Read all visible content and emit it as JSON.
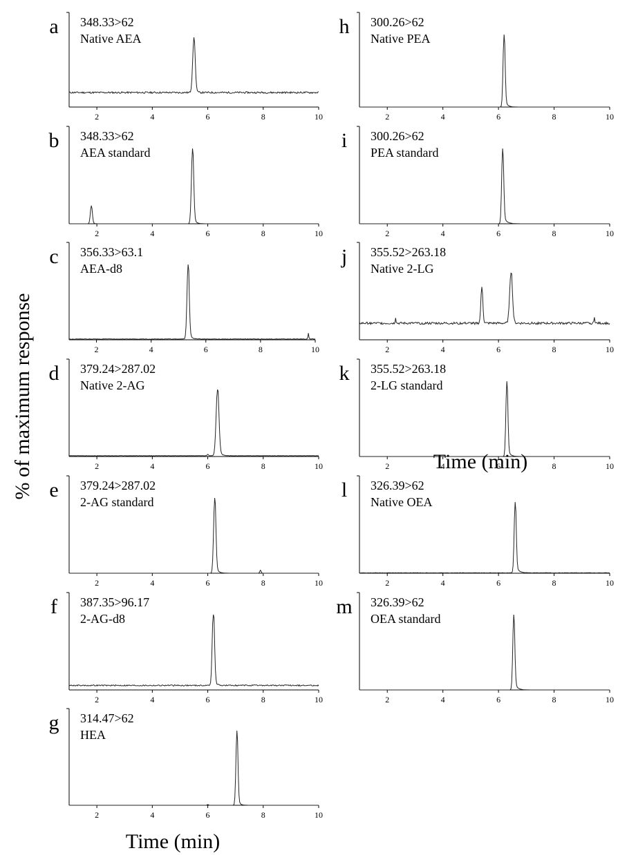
{
  "figure": {
    "ylabel": "% of maximum response",
    "xlabel_left": "Time (min)",
    "xlabel_right": "Time (min)"
  },
  "chart_data": [
    {
      "id": "a",
      "type": "line",
      "letter": "a",
      "transition": "348.33>62",
      "analyte": "Native AEA",
      "xlim": [
        1,
        10
      ],
      "ylim": [
        0,
        100
      ],
      "xticks": [
        2,
        4,
        6,
        8,
        10
      ],
      "baseline": 20,
      "noise": 1.2,
      "peaks": [
        {
          "x": 5.5,
          "height": 75,
          "width": 0.09,
          "tail": 0.05
        }
      ]
    },
    {
      "id": "b",
      "type": "line",
      "letter": "b",
      "transition": "348.33>62",
      "analyte": "AEA standard",
      "xlim": [
        1,
        10
      ],
      "ylim": [
        0,
        100
      ],
      "xticks": [
        2,
        4,
        6,
        8,
        10
      ],
      "baseline": 0,
      "noise": 0,
      "peaks": [
        {
          "x": 1.8,
          "height": 24,
          "width": 0.07,
          "tail": 0.05
        },
        {
          "x": 5.45,
          "height": 100,
          "width": 0.08,
          "tail": 0.08
        }
      ]
    },
    {
      "id": "c",
      "type": "line",
      "letter": "c",
      "transition": "356.33>63.1",
      "analyte": "AEA-d8",
      "xlim": [
        1,
        10
      ],
      "ylim": [
        0,
        100
      ],
      "xticks": [
        2,
        4,
        6,
        8,
        10
      ],
      "baseline": 1,
      "noise": 0.3,
      "peaks": [
        {
          "x": 5.35,
          "height": 100,
          "width": 0.08,
          "tail": 0.08
        },
        {
          "x": 9.75,
          "height": 8,
          "width": 0.03,
          "tail": 0.01
        }
      ]
    },
    {
      "id": "d",
      "type": "line",
      "letter": "d",
      "transition": "379.24>287.02",
      "analyte": "Native 2-AG",
      "xlim": [
        1,
        10
      ],
      "ylim": [
        0,
        100
      ],
      "xticks": [
        2,
        4,
        6,
        8,
        10
      ],
      "baseline": 1,
      "noise": 0.2,
      "peaks": [
        {
          "x": 6.35,
          "height": 88,
          "width": 0.1,
          "tail": 0.09
        },
        {
          "x": 6.0,
          "height": 2,
          "width": 0.05,
          "tail": 0.01
        }
      ]
    },
    {
      "id": "e",
      "type": "line",
      "letter": "e",
      "transition": "379.24>287.02",
      "analyte": "2-AG standard",
      "xlim": [
        1,
        10
      ],
      "ylim": [
        0,
        100
      ],
      "xticks": [
        2,
        4,
        6,
        8,
        10
      ],
      "baseline": 0,
      "noise": 0,
      "peaks": [
        {
          "x": 6.25,
          "height": 100,
          "width": 0.08,
          "tail": 0.09
        },
        {
          "x": 7.9,
          "height": 4,
          "width": 0.05,
          "tail": 0.01
        }
      ]
    },
    {
      "id": "f",
      "type": "line",
      "letter": "f",
      "transition": "387.35>96.17",
      "analyte": "2-AG-d8",
      "xlim": [
        1,
        10
      ],
      "ylim": [
        0,
        100
      ],
      "xticks": [
        2,
        4,
        6,
        8,
        10
      ],
      "baseline": 6,
      "noise": 0.8,
      "peaks": [
        {
          "x": 6.2,
          "height": 100,
          "width": 0.08,
          "tail": 0.07
        }
      ]
    },
    {
      "id": "g",
      "type": "line",
      "letter": "g",
      "transition": "314.47>62",
      "analyte": "HEA",
      "xlim": [
        1,
        10
      ],
      "ylim": [
        0,
        100
      ],
      "xticks": [
        2,
        4,
        6,
        8,
        10
      ],
      "baseline": 0,
      "noise": 0,
      "peaks": [
        {
          "x": 7.05,
          "height": 100,
          "width": 0.07,
          "tail": 0.07
        },
        {
          "x": 6.0,
          "height": 1,
          "width": 0.05,
          "tail": 0.01
        }
      ]
    },
    {
      "id": "h",
      "type": "line",
      "letter": "h",
      "transition": "300.26>62",
      "analyte": "Native PEA",
      "xlim": [
        1,
        10
      ],
      "ylim": [
        0,
        100
      ],
      "xticks": [
        2,
        4,
        6,
        8,
        10
      ],
      "baseline": 0,
      "noise": 0,
      "peaks": [
        {
          "x": 6.2,
          "height": 100,
          "width": 0.07,
          "tail": 0.09
        }
      ]
    },
    {
      "id": "i",
      "type": "line",
      "letter": "i",
      "transition": "300.26>62",
      "analyte": "PEA standard",
      "xlim": [
        1,
        10
      ],
      "ylim": [
        0,
        100
      ],
      "xticks": [
        2,
        4,
        6,
        8,
        10
      ],
      "baseline": 0,
      "noise": 0,
      "peaks": [
        {
          "x": 6.15,
          "height": 100,
          "width": 0.07,
          "tail": 0.11
        }
      ]
    },
    {
      "id": "j",
      "type": "line",
      "letter": "j",
      "transition": "355.52>263.18",
      "analyte": "Native 2-LG",
      "xlim": [
        1,
        10
      ],
      "ylim": [
        0,
        100
      ],
      "xticks": [
        2,
        4,
        6,
        8,
        10
      ],
      "baseline": 22,
      "noise": 1.5,
      "peaks": [
        {
          "x": 5.4,
          "height": 48,
          "width": 0.07,
          "tail": 0.04
        },
        {
          "x": 6.45,
          "height": 68,
          "width": 0.1,
          "tail": 0.05
        },
        {
          "x": 2.3,
          "height": 8,
          "width": 0.03,
          "tail": 0.01
        },
        {
          "x": 9.45,
          "height": 9,
          "width": 0.03,
          "tail": 0.01
        }
      ]
    },
    {
      "id": "k",
      "type": "line",
      "letter": "k",
      "transition": "355.52>263.18",
      "analyte": "2-LG standard",
      "xlim": [
        1,
        10
      ],
      "ylim": [
        0,
        100
      ],
      "xticks": [
        2,
        4,
        6,
        8,
        10
      ],
      "baseline": 0,
      "noise": 0,
      "peaks": [
        {
          "x": 6.3,
          "height": 100,
          "width": 0.07,
          "tail": 0.09
        }
      ]
    },
    {
      "id": "l",
      "type": "line",
      "letter": "l",
      "transition": "326.39>62",
      "analyte": "Native OEA",
      "xlim": [
        1,
        10
      ],
      "ylim": [
        0,
        100
      ],
      "xticks": [
        2,
        4,
        6,
        8,
        10
      ],
      "baseline": 0.5,
      "noise": 0.2,
      "peaks": [
        {
          "x": 6.6,
          "height": 94,
          "width": 0.07,
          "tail": 0.1
        }
      ]
    },
    {
      "id": "m",
      "type": "line",
      "letter": "m",
      "transition": "326.39>62",
      "analyte": "OEA standard",
      "xlim": [
        1,
        10
      ],
      "ylim": [
        0,
        100
      ],
      "xticks": [
        2,
        4,
        6,
        8,
        10
      ],
      "baseline": 0,
      "noise": 0,
      "peaks": [
        {
          "x": 6.55,
          "height": 100,
          "width": 0.07,
          "tail": 0.1
        }
      ]
    }
  ]
}
